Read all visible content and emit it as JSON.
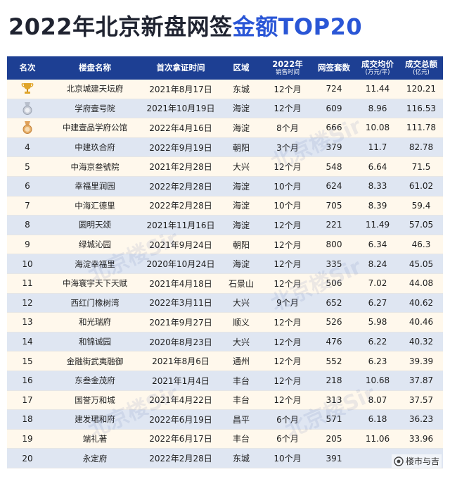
{
  "title": {
    "part1": "2022年北京新盘网签",
    "part2": "金额TOP20"
  },
  "headers": [
    {
      "main": "名次",
      "sub": ""
    },
    {
      "main": "楼盘名称",
      "sub": ""
    },
    {
      "main": "首次拿证时间",
      "sub": ""
    },
    {
      "main": "区域",
      "sub": ""
    },
    {
      "main": "2022年",
      "sub": "销售时间"
    },
    {
      "main": "网签套数",
      "sub": ""
    },
    {
      "main": "成交均价",
      "sub": "(万元/平)"
    },
    {
      "main": "成交总额",
      "sub": "(亿元)"
    }
  ],
  "medals": [
    "gold-trophy",
    "silver-medal",
    "bronze-medal"
  ],
  "rows": [
    {
      "rank": "",
      "name": "北京城建天坛府",
      "date": "2021年8月17日",
      "district": "东城",
      "duration": "12个月",
      "units": "724",
      "price": "11.44",
      "total": "120.21"
    },
    {
      "rank": "",
      "name": "学府壹号院",
      "date": "2021年10月19日",
      "district": "海淀",
      "duration": "12个月",
      "units": "609",
      "price": "8.96",
      "total": "116.53"
    },
    {
      "rank": "",
      "name": "中建壹品学府公馆",
      "date": "2022年4月16日",
      "district": "海淀",
      "duration": "8个月",
      "units": "666",
      "price": "10.08",
      "total": "111.78"
    },
    {
      "rank": "4",
      "name": "中建玖合府",
      "date": "2022年9月19日",
      "district": "朝阳",
      "duration": "3个月",
      "units": "379",
      "price": "11.7",
      "total": "82.78"
    },
    {
      "rank": "5",
      "name": "中海京叁號院",
      "date": "2021年2月28日",
      "district": "大兴",
      "duration": "12个月",
      "units": "548",
      "price": "6.64",
      "total": "71.5"
    },
    {
      "rank": "6",
      "name": "幸福里润园",
      "date": "2022年2月28日",
      "district": "海淀",
      "duration": "10个月",
      "units": "624",
      "price": "8.33",
      "total": "61.02"
    },
    {
      "rank": "7",
      "name": "中海汇德里",
      "date": "2022年2月28日",
      "district": "海淀",
      "duration": "10个月",
      "units": "705",
      "price": "8.39",
      "total": "59.4"
    },
    {
      "rank": "8",
      "name": "圆明天颂",
      "date": "2021年11月16日",
      "district": "海淀",
      "duration": "12个月",
      "units": "221",
      "price": "11.49",
      "total": "57.05"
    },
    {
      "rank": "9",
      "name": "绿城沁园",
      "date": "2021年9月24日",
      "district": "朝阳",
      "duration": "12个月",
      "units": "800",
      "price": "6.34",
      "total": "46.3"
    },
    {
      "rank": "10",
      "name": "海淀幸福里",
      "date": "2020年10月24日",
      "district": "海淀",
      "duration": "12个月",
      "units": "335",
      "price": "8.24",
      "total": "45.05"
    },
    {
      "rank": "11",
      "name": "中海寰宇天下天赋",
      "date": "2021年4月18日",
      "district": "石景山",
      "duration": "12个月",
      "units": "506",
      "price": "7.02",
      "total": "44.08"
    },
    {
      "rank": "12",
      "name": "西红门橡树湾",
      "date": "2022年3月11日",
      "district": "大兴",
      "duration": "9个月",
      "units": "652",
      "price": "6.27",
      "total": "40.62"
    },
    {
      "rank": "13",
      "name": "和光瑞府",
      "date": "2021年9月27日",
      "district": "顺义",
      "duration": "12个月",
      "units": "526",
      "price": "5.98",
      "total": "40.46"
    },
    {
      "rank": "14",
      "name": "和锦诚园",
      "date": "2020年8月23日",
      "district": "大兴",
      "duration": "12个月",
      "units": "476",
      "price": "6.22",
      "total": "40.32"
    },
    {
      "rank": "15",
      "name": "金融街武夷融御",
      "date": "2021年8月6日",
      "district": "通州",
      "duration": "12个月",
      "units": "552",
      "price": "6.23",
      "total": "39.39"
    },
    {
      "rank": "16",
      "name": "东叁金茂府",
      "date": "2021年1月4日",
      "district": "丰台",
      "duration": "12个月",
      "units": "218",
      "price": "10.68",
      "total": "37.87"
    },
    {
      "rank": "17",
      "name": "国誉万和城",
      "date": "2021年4月22日",
      "district": "丰台",
      "duration": "12个月",
      "units": "313",
      "price": "8.07",
      "total": "37.57"
    },
    {
      "rank": "18",
      "name": "建发珺和府",
      "date": "2022年6月19日",
      "district": "昌平",
      "duration": "6个月",
      "units": "571",
      "price": "6.18",
      "total": "36.23"
    },
    {
      "rank": "19",
      "name": "端礼著",
      "date": "2022年6月17日",
      "district": "丰台",
      "duration": "6个月",
      "units": "205",
      "price": "11.06",
      "total": "33.96"
    },
    {
      "rank": "20",
      "name": "永定府",
      "date": "2022年2月28日",
      "district": "东城",
      "duration": "10个月",
      "units": "391",
      "price": "",
      "total": ""
    }
  ],
  "watermark": "北京楼Sir",
  "credit": "楼市与吉"
}
